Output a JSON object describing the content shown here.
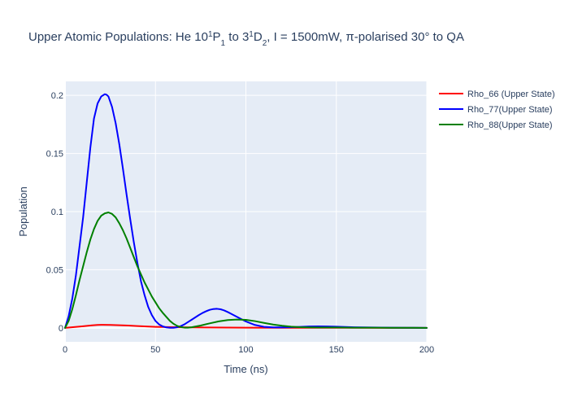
{
  "chart_data": {
    "type": "line",
    "title": {
      "parts": [
        {
          "t": "Upper Atomic Populations: He 10",
          "s": "normal"
        },
        {
          "t": "1",
          "s": "sup"
        },
        {
          "t": "P",
          "s": "normal"
        },
        {
          "t": "1",
          "s": "sub"
        },
        {
          "t": " to 3",
          "s": "normal"
        },
        {
          "t": "1",
          "s": "sup"
        },
        {
          "t": "D",
          "s": "normal"
        },
        {
          "t": "2",
          "s": "sub"
        },
        {
          "t": ", I = 1500mW, π-polarised 30° to QA",
          "s": "normal"
        }
      ]
    },
    "xlabel": "Time (ns)",
    "ylabel": "Population",
    "xlim": [
      0,
      200
    ],
    "ylim": [
      -0.012,
      0.212
    ],
    "xticks": [
      0,
      50,
      100,
      150,
      200
    ],
    "xtick_labels": [
      "0",
      "50",
      "100",
      "150",
      "200"
    ],
    "yticks": [
      0,
      0.05,
      0.1,
      0.15,
      0.2
    ],
    "ytick_labels": [
      "0",
      "0.05",
      "0.1",
      "0.15",
      "0.2"
    ],
    "grid": true,
    "legend_position": "right",
    "plot_bg": "#e5ecf6",
    "text_color": "#2a3f5f",
    "series": [
      {
        "name": "Rho_66 (Upper State)",
        "color": "#ff0000",
        "x": [
          0,
          5,
          10,
          15,
          18,
          20,
          25,
          30,
          35,
          40,
          45,
          50,
          60,
          70,
          80,
          100,
          120,
          140,
          160,
          180,
          200
        ],
        "y": [
          0,
          0.0007,
          0.0014,
          0.0022,
          0.0025,
          0.0026,
          0.0025,
          0.0023,
          0.002,
          0.0016,
          0.0012,
          0.0009,
          0.0006,
          0.0004,
          0.0003,
          0.0002,
          0.0001,
          0.0001,
          0.0001,
          0,
          0
        ]
      },
      {
        "name": "Rho_77(Upper State)",
        "color": "#0000ff",
        "x": [
          0,
          2,
          4,
          6,
          8,
          10,
          12,
          14,
          16,
          18,
          20,
          22,
          23,
          24,
          26,
          28,
          30,
          32,
          34,
          36,
          38,
          40,
          42,
          44,
          46,
          48,
          50,
          52,
          54,
          56,
          58,
          60,
          62,
          64,
          66,
          68,
          70,
          72,
          74,
          76,
          78,
          80,
          82,
          84,
          86,
          88,
          90,
          92,
          95,
          100,
          105,
          110,
          115,
          120,
          125,
          130,
          135,
          140,
          145,
          150,
          160,
          170,
          180,
          190,
          200
        ],
        "y": [
          0,
          0.01,
          0.025,
          0.045,
          0.07,
          0.095,
          0.125,
          0.155,
          0.18,
          0.193,
          0.199,
          0.201,
          0.2005,
          0.199,
          0.19,
          0.176,
          0.158,
          0.137,
          0.115,
          0.094,
          0.074,
          0.056,
          0.04,
          0.028,
          0.018,
          0.011,
          0.006,
          0.003,
          0.0013,
          0.0004,
          0.0001,
          0.0001,
          0.0005,
          0.0015,
          0.003,
          0.005,
          0.007,
          0.009,
          0.011,
          0.0128,
          0.0143,
          0.0155,
          0.0162,
          0.0164,
          0.016,
          0.015,
          0.0136,
          0.012,
          0.0095,
          0.0055,
          0.0025,
          0.0009,
          0.0004,
          0.0004,
          0.0006,
          0.0009,
          0.0012,
          0.0013,
          0.0012,
          0.001,
          0.0005,
          0.0003,
          0.0002,
          0.0001,
          0
        ]
      },
      {
        "name": "Rho_88(Upper State)",
        "color": "#008000",
        "x": [
          0,
          2,
          4,
          6,
          8,
          10,
          12,
          14,
          16,
          18,
          20,
          22,
          24,
          26,
          28,
          30,
          32,
          34,
          36,
          38,
          40,
          42,
          44,
          46,
          48,
          50,
          52,
          54,
          56,
          58,
          60,
          62,
          64,
          66,
          68,
          70,
          72,
          75,
          80,
          85,
          90,
          95,
          100,
          105,
          110,
          115,
          120,
          125,
          130,
          140,
          150,
          160,
          170,
          180,
          190,
          200
        ],
        "y": [
          0,
          0.006,
          0.016,
          0.028,
          0.041,
          0.053,
          0.065,
          0.076,
          0.085,
          0.092,
          0.0965,
          0.0985,
          0.0993,
          0.098,
          0.095,
          0.09,
          0.084,
          0.077,
          0.069,
          0.061,
          0.053,
          0.046,
          0.039,
          0.033,
          0.027,
          0.022,
          0.017,
          0.013,
          0.0095,
          0.006,
          0.0035,
          0.0017,
          0.0007,
          0.0002,
          0.0002,
          0.0005,
          0.0011,
          0.002,
          0.0039,
          0.0056,
          0.0067,
          0.0072,
          0.0069,
          0.0058,
          0.0043,
          0.0029,
          0.0018,
          0.001,
          0.0006,
          0.0003,
          0.0003,
          0.0002,
          0.0002,
          0.0001,
          0.0001,
          0
        ]
      }
    ]
  }
}
